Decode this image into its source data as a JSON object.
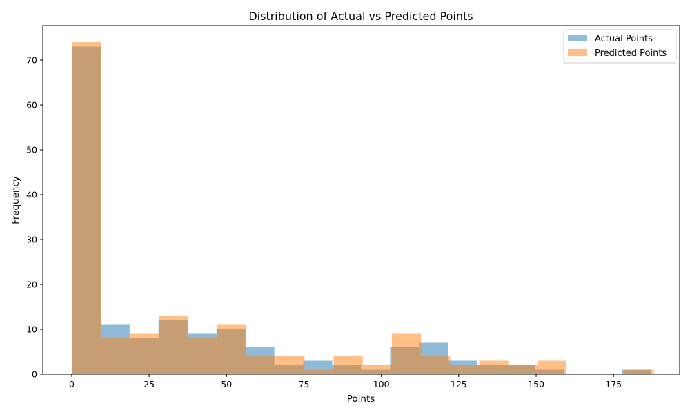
{
  "chart_data": {
    "type": "histogram",
    "title": "Distribution of Actual vs Predicted Points",
    "xlabel": "Points",
    "ylabel": "Frequency",
    "xlim": [
      -9.35,
      196.35
    ],
    "ylim": [
      0,
      77.7
    ],
    "x_ticks": [
      0,
      25,
      50,
      75,
      100,
      125,
      150,
      175
    ],
    "y_ticks": [
      0,
      10,
      20,
      30,
      40,
      50,
      60,
      70
    ],
    "grid": false,
    "legend_position": "top-right",
    "series": [
      {
        "name": "Actual Points",
        "color": "#1f77b4",
        "opacity": 0.5,
        "bin_edges": [
          0,
          9.35,
          18.7,
          28.05,
          37.4,
          46.75,
          56.1,
          65.45,
          74.8,
          84.15,
          93.5,
          102.85,
          112.2,
          121.55,
          130.9,
          140.25,
          149.6,
          158.95,
          168.3,
          177.65,
          187
        ],
        "values": [
          73,
          11,
          8,
          12,
          9,
          10,
          6,
          2,
          3,
          2,
          1,
          6,
          7,
          3,
          2,
          2,
          1,
          0,
          0,
          1
        ]
      },
      {
        "name": "Predicted Points",
        "color": "#ff7f0e",
        "opacity": 0.5,
        "bin_edges": [
          0,
          9.4,
          18.8,
          28.2,
          37.6,
          47.0,
          56.4,
          65.8,
          75.2,
          84.6,
          94.0,
          103.4,
          112.8,
          122.2,
          131.6,
          141.0,
          150.4,
          159.8,
          169.2,
          178.6,
          188.0
        ],
        "values": [
          74,
          8,
          9,
          13,
          8,
          11,
          4,
          4,
          1,
          4,
          2,
          9,
          4,
          2,
          3,
          2,
          3,
          0,
          0,
          1
        ]
      }
    ]
  }
}
